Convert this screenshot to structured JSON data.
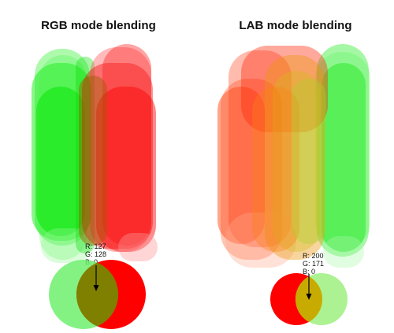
{
  "panels": {
    "rgb": {
      "title": "RGB mode blending",
      "left_color": "#00ff00",
      "right_color": "#ff0000",
      "overlap_color": "#7f8000",
      "readout": {
        "r": "R: 127",
        "g": "G: 128",
        "b": "B: 0"
      }
    },
    "lab": {
      "title": "LAB mode blending",
      "left_color": "#ff0000",
      "right_color": "#00ff00",
      "overlap_color": "#c8ab00",
      "readout": {
        "r": "R: 200",
        "g": "G: 171",
        "b": "B: 0"
      }
    }
  }
}
